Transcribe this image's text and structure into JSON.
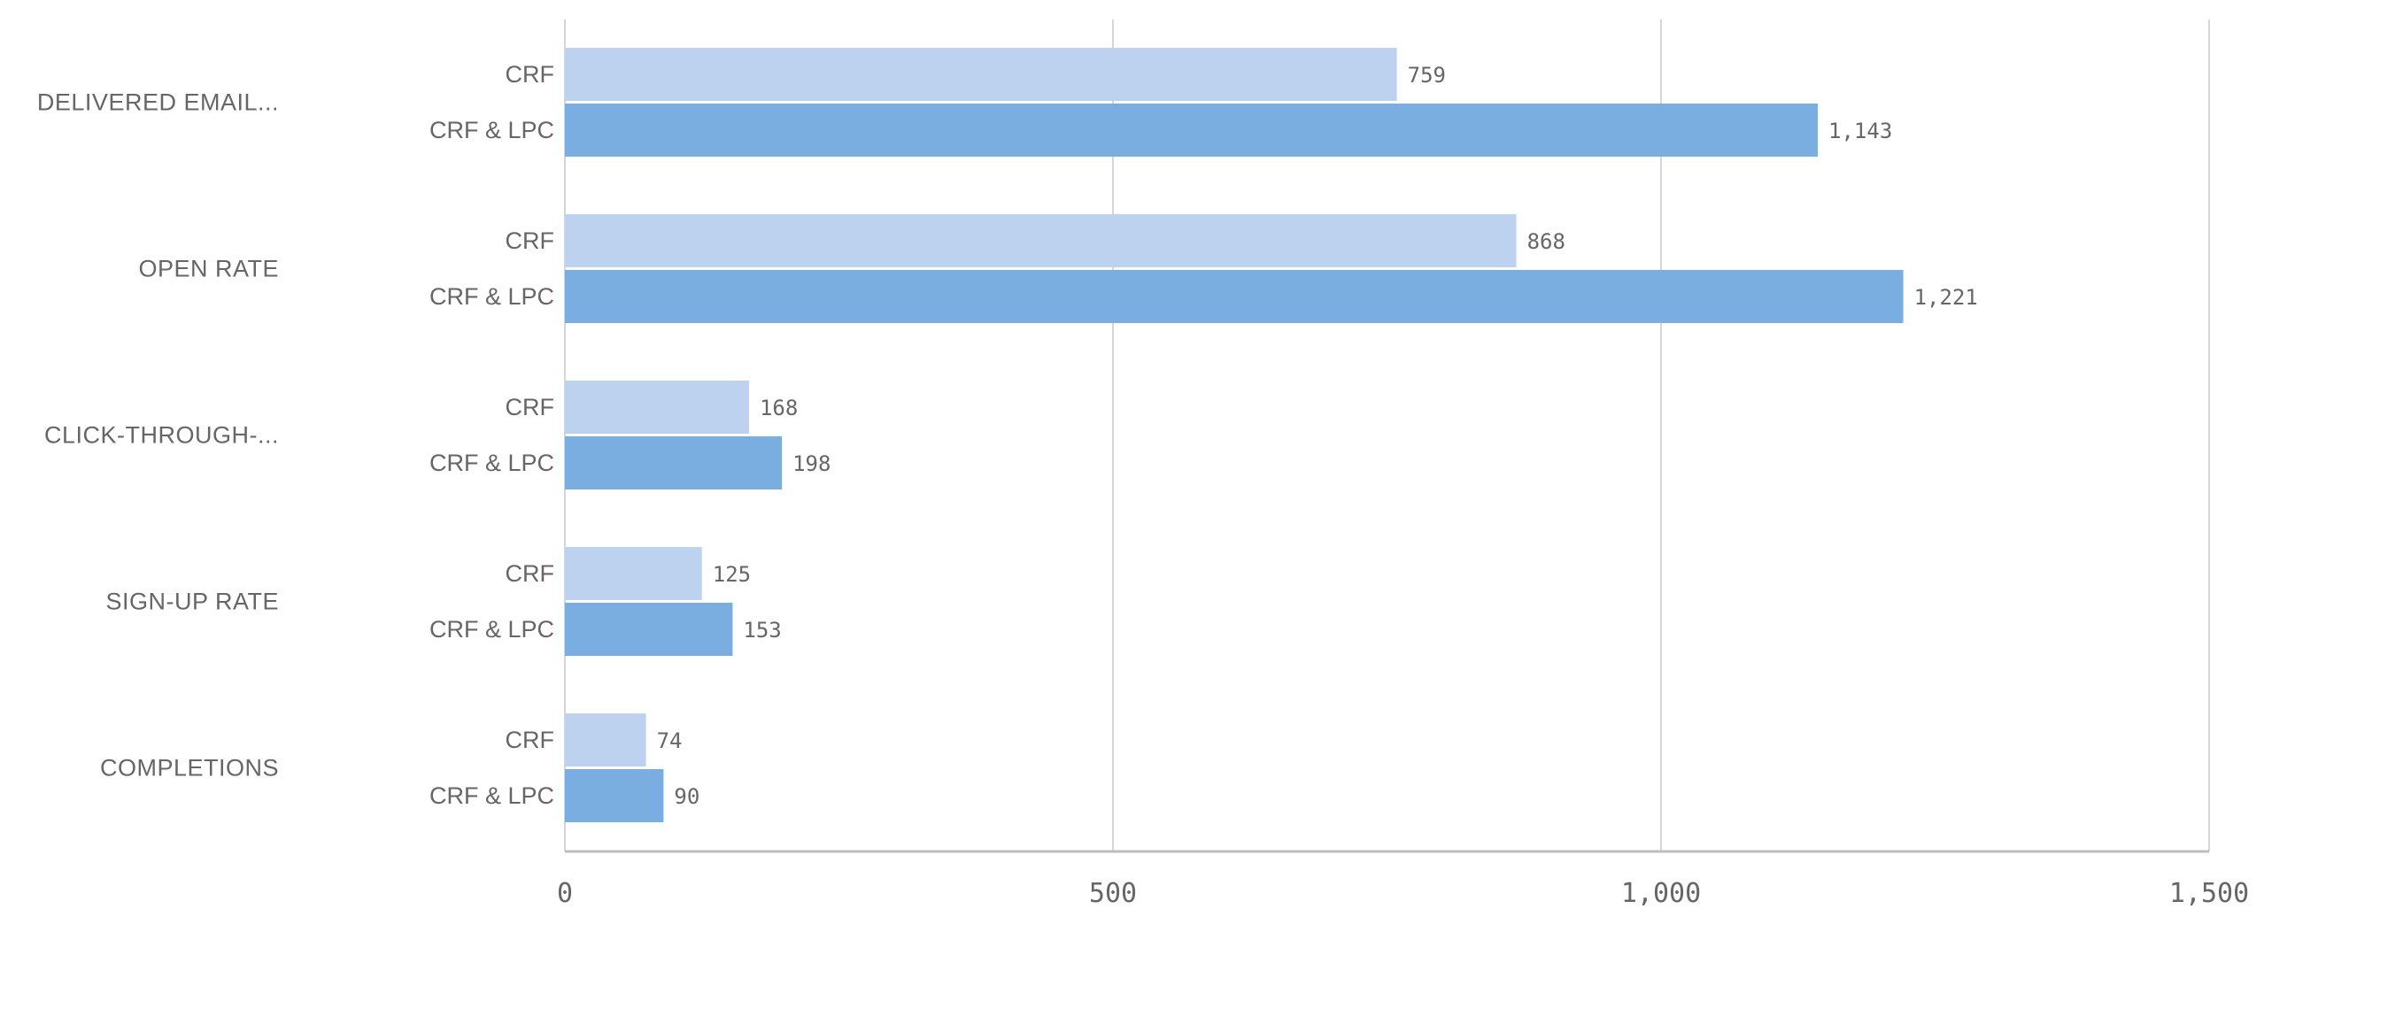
{
  "chart_data": {
    "type": "bar",
    "orientation": "horizontal",
    "categories": [
      "DELIVERED EMAIL...",
      "OPEN RATE",
      "CLICK-THROUGH-...",
      "SIGN-UP RATE",
      "COMPLETIONS"
    ],
    "series": [
      {
        "name": "CRF",
        "color": "#bcd2ef",
        "values": [
          759,
          868,
          168,
          125,
          74
        ]
      },
      {
        "name": "CRF & LPC",
        "color": "#7aaee0",
        "values": [
          1143,
          1221,
          198,
          153,
          90
        ]
      }
    ],
    "value_labels": [
      [
        "759",
        "868",
        "168",
        "125",
        "74"
      ],
      [
        "1,143",
        "1,221",
        "198",
        "153",
        "90"
      ]
    ],
    "xlim": [
      0,
      1500
    ],
    "xticks": [
      0,
      500,
      1000,
      1500
    ],
    "xtick_labels": [
      "0",
      "500",
      "1,000",
      "1,500"
    ],
    "grid": true,
    "legend": "none",
    "colors": {
      "grid": "#d6d6d6",
      "axis": "#bdbdbd",
      "text": "#666666"
    }
  }
}
